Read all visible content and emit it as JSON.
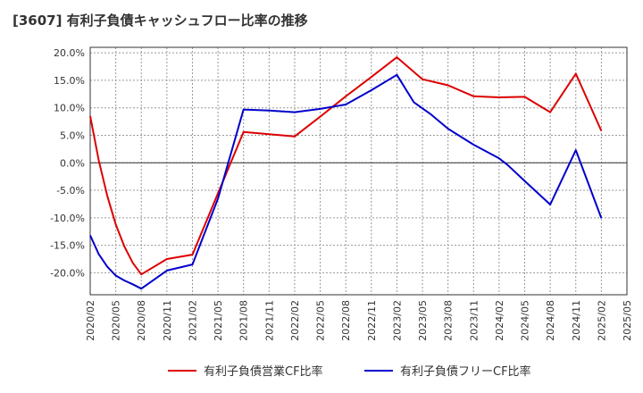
{
  "chart_data": {
    "type": "line",
    "title": "[3607]  有利子負債キャッシュフロー比率の推移",
    "xlabel": "",
    "ylabel": "",
    "ylim": [
      -24.0,
      21.0
    ],
    "grid": true,
    "legend_position": "bottom",
    "x_ticks": [
      "2020/02",
      "2020/05",
      "2020/08",
      "2020/11",
      "2021/02",
      "2021/05",
      "2021/08",
      "2021/11",
      "2022/02",
      "2022/05",
      "2022/08",
      "2022/11",
      "2023/02",
      "2023/05",
      "2023/08",
      "2023/11",
      "2024/02",
      "2024/05",
      "2024/08",
      "2024/11",
      "2025/02",
      "2025/05"
    ],
    "y_ticks": [
      {
        "value": 20,
        "label": "20.0%"
      },
      {
        "value": 15,
        "label": "15.0%"
      },
      {
        "value": 10,
        "label": "10.0%"
      },
      {
        "value": 5,
        "label": "5.0%"
      },
      {
        "value": 0,
        "label": "0.0%"
      },
      {
        "value": -5,
        "label": "-5.0%"
      },
      {
        "value": -10,
        "label": "-10.0%"
      },
      {
        "value": -15,
        "label": "-15.0%"
      },
      {
        "value": -20,
        "label": "-20.0%"
      }
    ],
    "series": [
      {
        "name": "有利子負債営業CF比率",
        "color": "#dd0000",
        "points": [
          {
            "x": "2020/02",
            "y": 8.5
          },
          {
            "x": "2020/03",
            "y": 0.5
          },
          {
            "x": "2020/04",
            "y": -6.0
          },
          {
            "x": "2020/05",
            "y": -11.2
          },
          {
            "x": "2020/06",
            "y": -15.2
          },
          {
            "x": "2020/07",
            "y": -18.2
          },
          {
            "x": "2020/08",
            "y": -20.3
          },
          {
            "x": "2020/11",
            "y": -17.5
          },
          {
            "x": "2021/02",
            "y": -16.7
          },
          {
            "x": "2021/08",
            "y": 5.6
          },
          {
            "x": "2021/11",
            "y": 5.2
          },
          {
            "x": "2022/02",
            "y": 4.8
          },
          {
            "x": "2022/05",
            "y": 8.4
          },
          {
            "x": "2022/08",
            "y": 12.1
          },
          {
            "x": "2022/11",
            "y": 15.6
          },
          {
            "x": "2023/02",
            "y": 19.2
          },
          {
            "x": "2023/05",
            "y": 15.2
          },
          {
            "x": "2023/08",
            "y": 14.1
          },
          {
            "x": "2023/11",
            "y": 12.1
          },
          {
            "x": "2024/02",
            "y": 11.9
          },
          {
            "x": "2024/05",
            "y": 12.0
          },
          {
            "x": "2024/08",
            "y": 9.2
          },
          {
            "x": "2024/11",
            "y": 16.2
          },
          {
            "x": "2025/02",
            "y": 5.8
          }
        ]
      },
      {
        "name": "有利子負債フリーCF比率",
        "color": "#0000cc",
        "points": [
          {
            "x": "2020/02",
            "y": -13.2
          },
          {
            "x": "2020/03",
            "y": -16.6
          },
          {
            "x": "2020/04",
            "y": -18.9
          },
          {
            "x": "2020/05",
            "y": -20.5
          },
          {
            "x": "2020/06",
            "y": -21.4
          },
          {
            "x": "2020/07",
            "y": -22.1
          },
          {
            "x": "2020/08",
            "y": -22.9
          },
          {
            "x": "2020/11",
            "y": -19.6
          },
          {
            "x": "2021/02",
            "y": -18.5
          },
          {
            "x": "2021/05",
            "y": -6.5
          },
          {
            "x": "2021/08",
            "y": 9.7
          },
          {
            "x": "2021/11",
            "y": 9.5
          },
          {
            "x": "2022/02",
            "y": 9.2
          },
          {
            "x": "2022/05",
            "y": 9.8
          },
          {
            "x": "2022/08",
            "y": 10.6
          },
          {
            "x": "2022/11",
            "y": 13.2
          },
          {
            "x": "2023/02",
            "y": 16.0
          },
          {
            "x": "2023/04",
            "y": 11.0
          },
          {
            "x": "2023/06",
            "y": 8.8
          },
          {
            "x": "2023/08",
            "y": 6.2
          },
          {
            "x": "2023/11",
            "y": 3.3
          },
          {
            "x": "2024/02",
            "y": 0.8
          },
          {
            "x": "2024/03",
            "y": -0.4
          },
          {
            "x": "2024/05",
            "y": -3.3
          },
          {
            "x": "2024/08",
            "y": -7.6
          },
          {
            "x": "2024/11",
            "y": 2.3
          },
          {
            "x": "2025/02",
            "y": -10.1
          }
        ]
      }
    ]
  }
}
